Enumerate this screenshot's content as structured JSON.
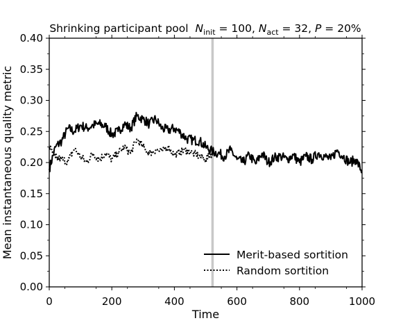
{
  "chart_data": {
    "type": "line",
    "title": "Shrinking participant pool",
    "title_params": {
      "n_init": {
        "symbol": "N",
        "subscript": "init",
        "value": "100"
      },
      "n_act": {
        "symbol": "N",
        "subscript": "act",
        "value": "32"
      },
      "p": {
        "symbol": "P",
        "value": "20%"
      }
    },
    "xlabel": "Time",
    "ylabel": "Mean instantaneous quality metric",
    "xlim": [
      0,
      1000
    ],
    "ylim": [
      0.0,
      0.4
    ],
    "x_ticks": [
      "0",
      "200",
      "400",
      "600",
      "800",
      "1000"
    ],
    "y_ticks": [
      "0.00",
      "0.05",
      "0.10",
      "0.15",
      "0.20",
      "0.25",
      "0.30",
      "0.35",
      "0.40"
    ],
    "grid": false,
    "legend_position": "lower-right",
    "vertical_marker": {
      "x": 522,
      "color": "#c8c8c8"
    },
    "series": [
      {
        "name": "Merit-based sortition",
        "style": "solid",
        "color": "#000000",
        "x": [
          0,
          20,
          40,
          60,
          80,
          100,
          120,
          140,
          160,
          180,
          200,
          220,
          240,
          260,
          280,
          300,
          320,
          340,
          360,
          380,
          400,
          420,
          440,
          460,
          480,
          500,
          520,
          540,
          560,
          580,
          600,
          620,
          640,
          660,
          680,
          700,
          720,
          740,
          760,
          780,
          800,
          820,
          840,
          860,
          880,
          900,
          920,
          940,
          960,
          980,
          1000
        ],
        "values": [
          0.19,
          0.225,
          0.235,
          0.255,
          0.25,
          0.26,
          0.255,
          0.26,
          0.262,
          0.258,
          0.245,
          0.25,
          0.262,
          0.255,
          0.275,
          0.27,
          0.262,
          0.27,
          0.255,
          0.252,
          0.255,
          0.248,
          0.238,
          0.236,
          0.235,
          0.225,
          0.218,
          0.215,
          0.21,
          0.22,
          0.205,
          0.2,
          0.212,
          0.198,
          0.215,
          0.2,
          0.208,
          0.21,
          0.205,
          0.212,
          0.2,
          0.21,
          0.205,
          0.215,
          0.21,
          0.205,
          0.22,
          0.21,
          0.2,
          0.205,
          0.185
        ]
      },
      {
        "name": "Random sortition",
        "style": "dotted",
        "color": "#000000",
        "x": [
          0,
          20,
          40,
          60,
          80,
          100,
          120,
          140,
          160,
          180,
          200,
          220,
          240,
          260,
          280,
          300,
          320,
          340,
          360,
          380,
          400,
          420,
          440,
          460,
          480,
          500,
          520
        ],
        "values": [
          0.225,
          0.208,
          0.205,
          0.202,
          0.222,
          0.21,
          0.2,
          0.215,
          0.205,
          0.215,
          0.205,
          0.215,
          0.225,
          0.215,
          0.238,
          0.225,
          0.215,
          0.22,
          0.218,
          0.225,
          0.212,
          0.218,
          0.22,
          0.215,
          0.21,
          0.205,
          0.215
        ]
      }
    ]
  }
}
